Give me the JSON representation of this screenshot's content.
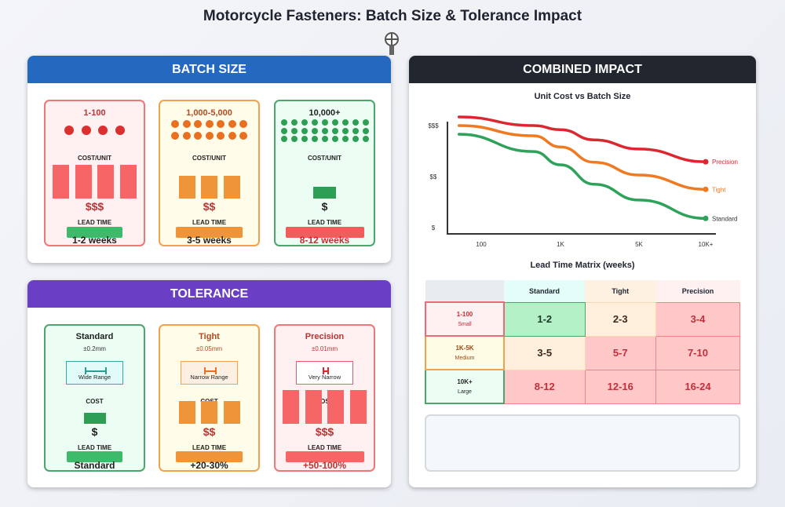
{
  "title": "Motorcycle Fasteners: Batch Size & Tolerance Impact",
  "batch": {
    "header": "BATCH SIZE",
    "header_color": "#2468c0",
    "cards": [
      {
        "label": "1-100",
        "cost_label": "COST/UNIT",
        "cost": "$$$",
        "lead_label": "LEAD TIME",
        "lead": "1-2 weeks",
        "dots": 4,
        "cost_bars": 4,
        "color": "#dc2f2f",
        "lead_color": "#3dbb6a"
      },
      {
        "label": "1,000-5,000",
        "cost_label": "COST/UNIT",
        "cost": "$$",
        "lead_label": "LEAD TIME",
        "lead": "3-5 weeks",
        "dots": 14,
        "cost_bars": 3,
        "color": "#e8701f",
        "lead_color": "#f0943a"
      },
      {
        "label": "10,000+",
        "cost_label": "COST/UNIT",
        "cost": "$",
        "lead_label": "LEAD TIME",
        "lead": "8-12 weeks",
        "dots": 27,
        "cost_bars": 1,
        "color": "#2e9e55",
        "lead_color": "#f25c5c"
      }
    ]
  },
  "tolerance": {
    "header": "TOLERANCE",
    "header_color": "#6a3fc6",
    "cards": [
      {
        "label": "Standard",
        "spec": "±0.2mm",
        "range": "Wide Range",
        "cost_label": "COST",
        "cost": "$",
        "lead_label": "LEAD TIME",
        "lead": "Standard",
        "cost_bars": 1
      },
      {
        "label": "Tight",
        "spec": "±0.05mm",
        "range": "Narrow Range",
        "cost_label": "COST",
        "cost": "$$",
        "lead_label": "LEAD TIME",
        "lead": "+20-30%",
        "cost_bars": 3
      },
      {
        "label": "Precision",
        "spec": "±0.01mm",
        "range": "Very Narrow",
        "cost_label": "COST",
        "cost": "$$$",
        "lead_label": "LEAD TIME",
        "lead": "+50-100%",
        "cost_bars": 4
      }
    ]
  },
  "combined": {
    "header": "COMBINED IMPACT",
    "header_color": "#22262f",
    "matrix_title": "Lead Time Matrix (weeks)",
    "columns": [
      "Standard",
      "Tight",
      "Precision"
    ],
    "rows": [
      {
        "label": "1-100",
        "sub": "Small",
        "values": [
          "1-2",
          "2-3",
          "3-4"
        ]
      },
      {
        "label": "1K-5K",
        "sub": "Medium",
        "values": [
          "3-5",
          "5-7",
          "7-10"
        ]
      },
      {
        "label": "10K+",
        "sub": "Large",
        "values": [
          "8-12",
          "12-16",
          "16-24"
        ]
      }
    ]
  },
  "chart_data": {
    "type": "line",
    "title": "Unit Cost vs Batch Size",
    "x_tick_labels": [
      "100",
      "1K",
      "5K",
      "10K+"
    ],
    "y_tick_labels": [
      "$",
      "$$",
      "$$$"
    ],
    "x": [
      0.72,
      1.66,
      2,
      2.43,
      3,
      4
    ],
    "series": [
      {
        "name": "Precision",
        "color": "#dc2730",
        "values": [
          3.17,
          3.0,
          2.92,
          2.72,
          2.54,
          2.29
        ]
      },
      {
        "name": "Tight",
        "color": "#ef7a22",
        "values": [
          3.0,
          2.8,
          2.58,
          2.28,
          2.03,
          1.75
        ]
      },
      {
        "name": "Standard",
        "color": "#2ea25a",
        "values": [
          2.83,
          2.49,
          2.23,
          1.85,
          1.54,
          1.18
        ]
      }
    ]
  }
}
